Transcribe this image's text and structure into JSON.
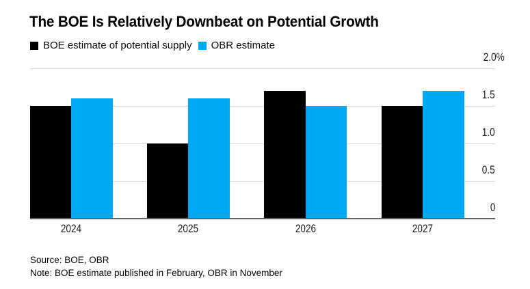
{
  "title": "The BOE Is Relatively Downbeat on Potential Growth",
  "legend": [
    {
      "key": "boe",
      "label": "BOE estimate of potential supply",
      "color": "#000000"
    },
    {
      "key": "obr",
      "label": "OBR estimate",
      "color": "#00a9f4"
    }
  ],
  "source": "Source: BOE, OBR",
  "note": "Note: BOE estimate published in February, OBR in November",
  "chart_data": {
    "type": "bar",
    "title": "The BOE Is Relatively Downbeat on Potential Growth",
    "categories": [
      "2024",
      "2025",
      "2026",
      "2027"
    ],
    "series": [
      {
        "key": "boe",
        "name": "BOE estimate of potential supply",
        "color": "#000000",
        "values": [
          1.5,
          1.0,
          1.7,
          1.5
        ]
      },
      {
        "key": "obr",
        "name": "OBR estimate",
        "color": "#00a9f4",
        "values": [
          1.6,
          1.6,
          1.5,
          1.7
        ]
      }
    ],
    "unit": "%",
    "ylim": [
      0,
      2.0
    ],
    "y_ticks": [
      {
        "value": 0,
        "label": "0"
      },
      {
        "value": 0.5,
        "label": "0.5"
      },
      {
        "value": 1.0,
        "label": "1.0"
      },
      {
        "value": 1.5,
        "label": "1.5"
      },
      {
        "value": 2.0,
        "label": "2.0%"
      }
    ],
    "grid": "horizontal",
    "gridline_color": "#d9d9d9",
    "axis_line_color": "#636363",
    "legend_position": "top-left",
    "y_axis_labels_position": "right"
  }
}
